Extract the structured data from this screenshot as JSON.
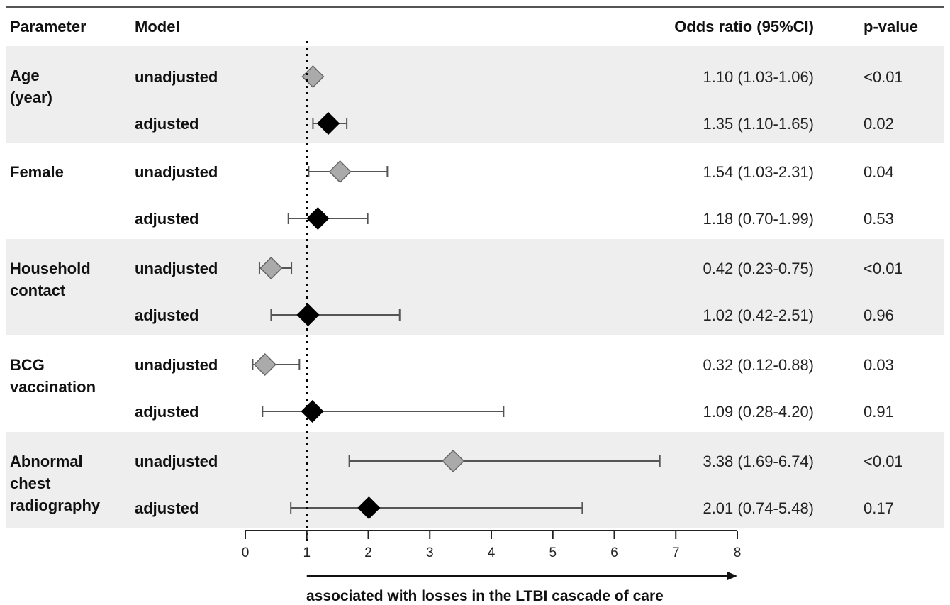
{
  "chart_data": {
    "type": "forest",
    "headers": {
      "parameter": "Parameter",
      "model": "Model",
      "odds_ratio": "Odds ratio (95%CI)",
      "p_value": "p-value"
    },
    "groups": [
      {
        "parameter": [
          "Age",
          "(year)"
        ],
        "rows": [
          {
            "model": "unadjusted",
            "or": 1.1,
            "lo": 1.03,
            "hi": 1.06,
            "or_text": "1.10 (1.03-1.06)",
            "p": "<0.01"
          },
          {
            "model": "adjusted",
            "or": 1.35,
            "lo": 1.1,
            "hi": 1.65,
            "or_text": "1.35 (1.10-1.65)",
            "p": "0.02"
          }
        ]
      },
      {
        "parameter": [
          "Female"
        ],
        "rows": [
          {
            "model": "unadjusted",
            "or": 1.54,
            "lo": 1.03,
            "hi": 2.31,
            "or_text": "1.54 (1.03-2.31)",
            "p": "0.04"
          },
          {
            "model": "adjusted",
            "or": 1.18,
            "lo": 0.7,
            "hi": 1.99,
            "or_text": "1.18 (0.70-1.99)",
            "p": "0.53"
          }
        ]
      },
      {
        "parameter": [
          "Household",
          "contact"
        ],
        "rows": [
          {
            "model": "unadjusted",
            "or": 0.42,
            "lo": 0.23,
            "hi": 0.75,
            "or_text": "0.42 (0.23-0.75)",
            "p": "<0.01"
          },
          {
            "model": "adjusted",
            "or": 1.02,
            "lo": 0.42,
            "hi": 2.51,
            "or_text": "1.02 (0.42-2.51)",
            "p": "0.96"
          }
        ]
      },
      {
        "parameter": [
          "BCG",
          "vaccination"
        ],
        "rows": [
          {
            "model": "unadjusted",
            "or": 0.32,
            "lo": 0.12,
            "hi": 0.88,
            "or_text": "0.32 (0.12-0.88)",
            "p": "0.03"
          },
          {
            "model": "adjusted",
            "or": 1.09,
            "lo": 0.28,
            "hi": 4.2,
            "or_text": "1.09 (0.28-4.20)",
            "p": "0.91"
          }
        ]
      },
      {
        "parameter": [
          "Abnormal",
          "chest",
          "radiography"
        ],
        "rows": [
          {
            "model": "unadjusted",
            "or": 3.38,
            "lo": 1.69,
            "hi": 6.74,
            "or_text": "3.38 (1.69-6.74)",
            "p": "<0.01"
          },
          {
            "model": "adjusted",
            "or": 2.01,
            "lo": 0.74,
            "hi": 5.48,
            "or_text": "2.01 (0.74-5.48)",
            "p": "0.17"
          }
        ]
      }
    ],
    "xlim": [
      0,
      8
    ],
    "xticks": [
      "0",
      "1",
      "2",
      "3",
      "4",
      "5",
      "6",
      "7",
      "8"
    ],
    "reference_line": 1,
    "xlabel": "associated with losses in the LTBI cascade of care",
    "colors": {
      "unadjusted": "#aaaaaa",
      "adjusted": "#000000",
      "band": "#eeeeee",
      "whisker": "#555555"
    }
  }
}
